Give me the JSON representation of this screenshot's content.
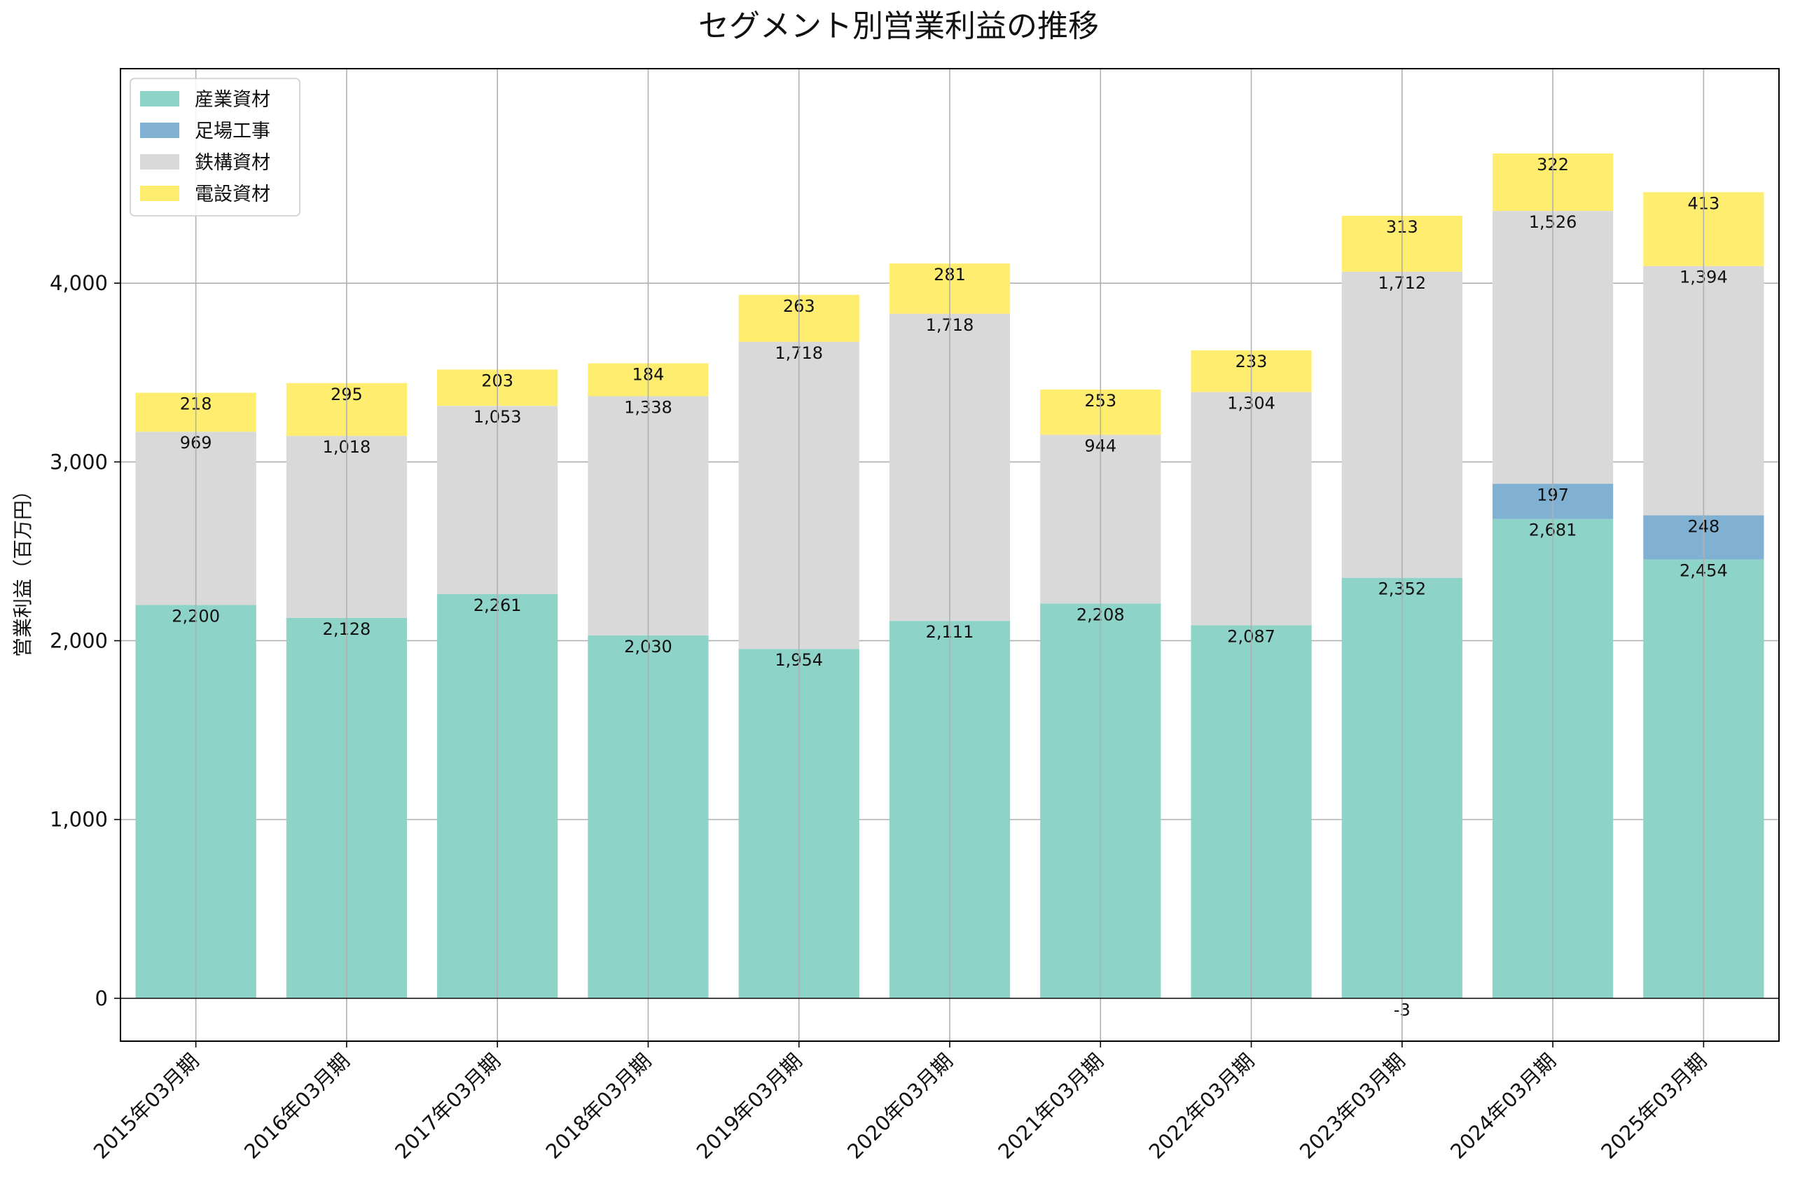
{
  "chart_data": {
    "type": "bar",
    "stacked": true,
    "title": "セグメント別営業利益の推移",
    "ylabel": "営業利益（百万円）",
    "xlabel": "",
    "ylim": [
      -240,
      5200
    ],
    "yticks": [
      0,
      1000,
      2000,
      3000,
      4000
    ],
    "ytick_labels": [
      "0",
      "1,000",
      "2,000",
      "3,000",
      "4,000"
    ],
    "grid": true,
    "legend_position": "top-left",
    "categories": [
      "2015年03月期",
      "2016年03月期",
      "2017年03月期",
      "2018年03月期",
      "2019年03月期",
      "2020年03月期",
      "2021年03月期",
      "2022年03月期",
      "2023年03月期",
      "2024年03月期",
      "2025年03月期"
    ],
    "series": [
      {
        "name": "産業資材",
        "color": "#8dd3c7",
        "values": [
          2200,
          2128,
          2261,
          2030,
          1954,
          2111,
          2208,
          2087,
          2352,
          2681,
          2454
        ],
        "labels": [
          "2,200",
          "2,128",
          "2,261",
          "2,030",
          "1,954",
          "2,111",
          "2,208",
          "2,087",
          "2,352",
          "2,681",
          "2,454"
        ]
      },
      {
        "name": "足場工事",
        "color": "#80b1d3",
        "values": [
          null,
          null,
          null,
          null,
          null,
          null,
          null,
          null,
          -3,
          197,
          248
        ],
        "labels": [
          "",
          "",
          "",
          "",
          "",
          "",
          "",
          "",
          "-3",
          "197",
          "248"
        ]
      },
      {
        "name": "鉄構資材",
        "color": "#d9d9d9",
        "values": [
          969,
          1018,
          1053,
          1338,
          1718,
          1718,
          944,
          1304,
          1712,
          1526,
          1394
        ],
        "labels": [
          "969",
          "1,018",
          "1,053",
          "1,338",
          "1,718",
          "1,718",
          "944",
          "1,304",
          "1,712",
          "1,526",
          "1,394"
        ]
      },
      {
        "name": "電設資材",
        "color": "#ffed6f",
        "values": [
          218,
          295,
          203,
          184,
          263,
          281,
          253,
          233,
          313,
          322,
          413
        ],
        "labels": [
          "218",
          "295",
          "203",
          "184",
          "263",
          "281",
          "253",
          "233",
          "313",
          "322",
          "413"
        ]
      }
    ]
  }
}
